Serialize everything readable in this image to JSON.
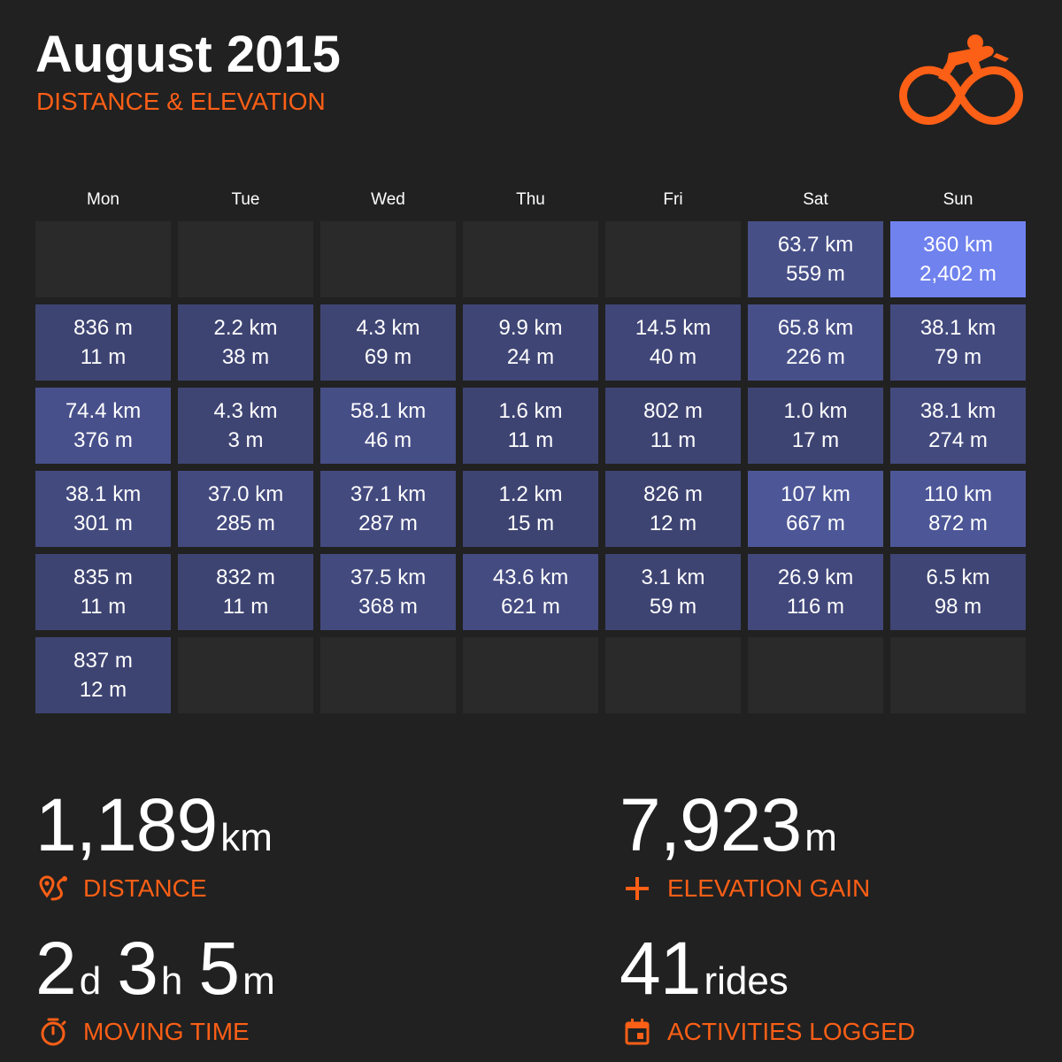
{
  "header": {
    "title": "August 2015",
    "subtitle": "DISTANCE & ELEVATION",
    "logo_icon": "cyclist-icon"
  },
  "colors": {
    "accent": "#fc5f16",
    "background": "#212121",
    "empty_cell": "#2a2a2a",
    "cell_low": "#3e4472",
    "cell_high": "#7082ee"
  },
  "calendar": {
    "weekdays": [
      "Mon",
      "Tue",
      "Wed",
      "Thu",
      "Fri",
      "Sat",
      "Sun"
    ],
    "weeks": [
      [
        null,
        null,
        null,
        null,
        null,
        {
          "distance": "63.7 km",
          "elevation": "559 m",
          "intensity": 0.17
        },
        {
          "distance": "360 km",
          "elevation": "2,402 m",
          "intensity": 1.0
        }
      ],
      [
        {
          "distance": "836 m",
          "elevation": "11 m",
          "intensity": 0.0
        },
        {
          "distance": "2.2 km",
          "elevation": "38 m",
          "intensity": 0.0
        },
        {
          "distance": "4.3 km",
          "elevation": "69 m",
          "intensity": 0.01
        },
        {
          "distance": "9.9 km",
          "elevation": "24 m",
          "intensity": 0.02
        },
        {
          "distance": "14.5 km",
          "elevation": "40 m",
          "intensity": 0.04
        },
        {
          "distance": "65.8 km",
          "elevation": "226 m",
          "intensity": 0.18
        },
        {
          "distance": "38.1 km",
          "elevation": "79 m",
          "intensity": 0.1
        }
      ],
      [
        {
          "distance": "74.4 km",
          "elevation": "376 m",
          "intensity": 0.2
        },
        {
          "distance": "4.3 km",
          "elevation": "3 m",
          "intensity": 0.01
        },
        {
          "distance": "58.1 km",
          "elevation": "46 m",
          "intensity": 0.16
        },
        {
          "distance": "1.6 km",
          "elevation": "11 m",
          "intensity": 0.0
        },
        {
          "distance": "802 m",
          "elevation": "11 m",
          "intensity": 0.0
        },
        {
          "distance": "1.0 km",
          "elevation": "17 m",
          "intensity": 0.0
        },
        {
          "distance": "38.1 km",
          "elevation": "274 m",
          "intensity": 0.1
        }
      ],
      [
        {
          "distance": "38.1 km",
          "elevation": "301 m",
          "intensity": 0.1
        },
        {
          "distance": "37.0 km",
          "elevation": "285 m",
          "intensity": 0.1
        },
        {
          "distance": "37.1 km",
          "elevation": "287 m",
          "intensity": 0.1
        },
        {
          "distance": "1.2 km",
          "elevation": "15 m",
          "intensity": 0.0
        },
        {
          "distance": "826 m",
          "elevation": "12 m",
          "intensity": 0.0
        },
        {
          "distance": "107 km",
          "elevation": "667 m",
          "intensity": 0.3
        },
        {
          "distance": "110 km",
          "elevation": "872 m",
          "intensity": 0.3
        }
      ],
      [
        {
          "distance": "835 m",
          "elevation": "11 m",
          "intensity": 0.0
        },
        {
          "distance": "832 m",
          "elevation": "11 m",
          "intensity": 0.0
        },
        {
          "distance": "37.5 km",
          "elevation": "368 m",
          "intensity": 0.1
        },
        {
          "distance": "43.6 km",
          "elevation": "621 m",
          "intensity": 0.12
        },
        {
          "distance": "3.1 km",
          "elevation": "59 m",
          "intensity": 0.0
        },
        {
          "distance": "26.9 km",
          "elevation": "116 m",
          "intensity": 0.07
        },
        {
          "distance": "6.5 km",
          "elevation": "98 m",
          "intensity": 0.02
        }
      ],
      [
        {
          "distance": "837 m",
          "elevation": "12 m",
          "intensity": 0.0
        },
        null,
        null,
        null,
        null,
        null,
        null
      ]
    ]
  },
  "stats": {
    "distance": {
      "value": "1,189",
      "unit": "km",
      "label": "DISTANCE",
      "icon": "route-pin-icon"
    },
    "elevation": {
      "value": "7,923",
      "unit": "m",
      "label": "ELEVATION GAIN",
      "icon": "plus-icon"
    },
    "moving_time": {
      "days": "2",
      "days_unit": "d",
      "hours": "3",
      "hours_unit": "h",
      "minutes": "5",
      "minutes_unit": "m",
      "label": "MOVING TIME",
      "icon": "stopwatch-icon"
    },
    "activities": {
      "value": "41",
      "unit": "rides",
      "label": "ACTIVITIES LOGGED",
      "icon": "calendar-icon"
    }
  }
}
